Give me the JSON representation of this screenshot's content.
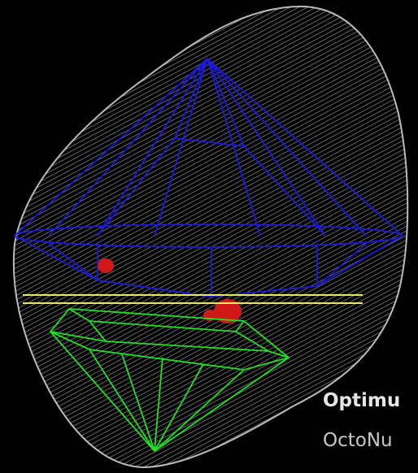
{
  "caption": {
    "title": "Optimu",
    "subtitle": "OctoNu"
  }
}
